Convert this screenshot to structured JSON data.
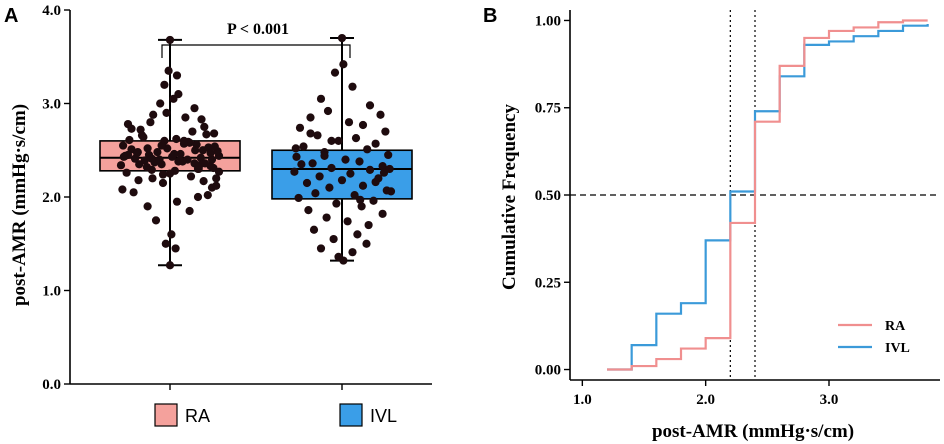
{
  "colors": {
    "ra_fill": "#f4a19c",
    "ivl_fill": "#3a9ee8",
    "ra_line": "#f08f8f",
    "ivl_line": "#3b9ad9",
    "dot": "#1e0b0e",
    "axis": "#000000"
  },
  "panels": {
    "a_label": "A",
    "b_label": "B"
  },
  "chart_data": [
    {
      "type": "box",
      "panel": "A",
      "title": "",
      "ylabel": "post-AMR (mmHg·s/cm)",
      "xlabel": "",
      "ylim": [
        0.0,
        4.0
      ],
      "yticks": [
        "0.0",
        "1.0",
        "2.0",
        "3.0",
        "4.0"
      ],
      "annotation": "P < 0.001",
      "legend": [
        {
          "name": "RA",
          "color": "#f4a19c"
        },
        {
          "name": "IVL",
          "color": "#3a9ee8"
        }
      ],
      "series": [
        {
          "name": "RA",
          "min": 1.27,
          "q1": 2.28,
          "median": 2.42,
          "q3": 2.6,
          "max": 3.68,
          "points": [
            2.45,
            2.38,
            2.51,
            2.3,
            2.6,
            2.2,
            2.72,
            2.4,
            2.33,
            2.55,
            2.48,
            2.36,
            2.29,
            2.62,
            2.44,
            2.41,
            2.5,
            2.35,
            2.57,
            2.26,
            2.67,
            2.43,
            2.39,
            2.52,
            2.31,
            2.47,
            2.58,
            2.34,
            2.46,
            2.42,
            2.37,
            2.53,
            2.28,
            2.61,
            2.4,
            2.49,
            2.32,
            2.56,
            2.44,
            2.38,
            2.22,
            2.66,
            2.15,
            2.75,
            2.1,
            2.8,
            2.05,
            2.85,
            2.0,
            2.9,
            1.95,
            2.95,
            1.9,
            3.0,
            1.85,
            3.05,
            1.75,
            3.1,
            1.6,
            3.2,
            1.5,
            3.3,
            1.45,
            3.35,
            2.18,
            2.68,
            2.12,
            2.78,
            2.08,
            2.83,
            2.02,
            2.88,
            2.25,
            2.64,
            2.2,
            2.7,
            2.17,
            2.73,
            2.45,
            2.4,
            2.35,
            2.5,
            2.3,
            2.55,
            2.27,
            2.59,
            2.43,
            2.47,
            2.36,
            2.52,
            3.68,
            1.27,
            2.6,
            2.24,
            2.39,
            2.48,
            2.34,
            2.54,
            2.41,
            2.46
          ],
          "jitter": [
            -0.3,
            0.12,
            -0.55,
            0.41,
            -0.08,
            0.66,
            -0.42,
            0.25,
            0.58,
            -0.67,
            -0.18,
            0.35,
            -0.26,
            0.09,
            0.7,
            -0.5,
            0.47,
            -0.12,
            0.2,
            -0.62,
            0.52,
            0.03,
            -0.36,
            -0.04,
            0.62,
            -0.47,
            0.28,
            -0.7,
            0.15,
            0.44,
            -0.22,
            0.55,
            0.07,
            -0.58,
            -0.15,
            0.68,
            -0.33,
            0.38,
            -0.64,
            0.18,
            0.3,
            -0.4,
            -0.1,
            0.49,
            0.6,
            -0.28,
            -0.52,
            0.22,
            0.4,
            -0.05,
            0.1,
            0.35,
            -0.32,
            -0.14,
            0.28,
            0.05,
            -0.2,
            0.12,
            0.02,
            -0.08,
            -0.06,
            0.1,
            0.08,
            -0.02,
            -0.45,
            0.63,
            0.66,
            -0.6,
            -0.68,
            0.45,
            0.54,
            -0.24,
            0.0,
            -0.38,
            -0.25,
            0.32,
            0.48,
            -0.55,
            -0.6,
            0.6,
            -0.44,
            0.36,
            0.4,
            -0.12,
            0.7,
            0.26,
            -0.66,
            0.58,
            0.5,
            -0.32,
            0.0,
            0.0,
            0.2,
            -0.1,
            0.14,
            -0.46,
            0.42,
            0.64,
            -0.26,
            0.06
          ]
        },
        {
          "name": "IVL",
          "min": 1.32,
          "q1": 1.98,
          "median": 2.3,
          "q3": 2.5,
          "max": 3.7,
          "points": [
            3.7,
            3.42,
            3.33,
            3.18,
            3.05,
            2.98,
            2.92,
            2.88,
            2.85,
            2.8,
            2.77,
            2.74,
            2.7,
            2.66,
            2.63,
            2.6,
            2.57,
            2.54,
            2.51,
            2.48,
            2.45,
            2.43,
            2.4,
            2.38,
            2.36,
            2.33,
            2.31,
            2.29,
            2.27,
            2.25,
            2.22,
            2.2,
            2.18,
            2.15,
            2.12,
            2.1,
            2.07,
            2.04,
            2.02,
            1.99,
            1.96,
            1.93,
            1.9,
            1.86,
            1.82,
            1.78,
            1.74,
            1.7,
            1.65,
            1.6,
            1.55,
            1.5,
            1.45,
            1.41,
            1.36,
            1.32,
            2.35,
            2.26,
            2.44,
            2.16,
            2.52,
            2.06,
            2.6,
            1.97,
            2.68,
            2.3
          ],
          "jitter": [
            0.0,
            0.02,
            -0.1,
            0.15,
            -0.3,
            0.4,
            -0.2,
            0.55,
            -0.45,
            0.1,
            0.3,
            -0.6,
            0.62,
            -0.35,
            0.2,
            -0.05,
            0.48,
            -0.55,
            0.36,
            -0.25,
            0.66,
            -0.65,
            0.05,
            0.25,
            -0.42,
            0.58,
            -0.15,
            0.4,
            -0.68,
            0.12,
            -0.32,
            0.52,
            0.0,
            -0.5,
            0.3,
            -0.18,
            0.64,
            -0.38,
            0.18,
            -0.62,
            0.45,
            -0.08,
            0.28,
            -0.48,
            0.58,
            -0.22,
            0.08,
            0.38,
            -0.4,
            0.22,
            -0.12,
            0.35,
            -0.3,
            0.15,
            -0.05,
            0.02,
            -0.58,
            0.6,
            -0.25,
            0.48,
            -0.66,
            0.7,
            -0.15,
            0.26,
            -0.45,
            0.68
          ]
        }
      ]
    },
    {
      "type": "line",
      "panel": "B",
      "title": "",
      "xlabel": "post-AMR (mmHg·s/cm)",
      "ylabel": "Cumulative Frequency",
      "xlim": [
        0.9,
        3.9
      ],
      "ylim": [
        -0.03,
        1.03
      ],
      "xticks": [
        "1.0",
        "2.0",
        "3.0"
      ],
      "xtick_values": [
        1.0,
        2.0,
        3.0
      ],
      "yticks": [
        "0.00",
        "0.25",
        "0.50",
        "0.75",
        "1.00"
      ],
      "ytick_values": [
        0.0,
        0.25,
        0.5,
        0.75,
        1.0
      ],
      "reference_lines": {
        "horizontal": [
          0.5
        ],
        "vertical": [
          2.2,
          2.4
        ]
      },
      "legend_position": "bottom-right",
      "series": [
        {
          "name": "RA",
          "color": "#f08f8f",
          "x": [
            1.2,
            1.4,
            1.6,
            1.8,
            2.0,
            2.2,
            2.4,
            2.6,
            2.8,
            3.0,
            3.2,
            3.4,
            3.6,
            3.8
          ],
          "y": [
            0.0,
            0.01,
            0.03,
            0.06,
            0.09,
            0.42,
            0.71,
            0.87,
            0.95,
            0.97,
            0.98,
            0.995,
            1.0,
            1.0
          ]
        },
        {
          "name": "IVL",
          "color": "#3b9ad9",
          "x": [
            1.2,
            1.4,
            1.6,
            1.8,
            2.0,
            2.2,
            2.4,
            2.6,
            2.8,
            3.0,
            3.2,
            3.4,
            3.6,
            3.8
          ],
          "y": [
            0.0,
            0.07,
            0.16,
            0.19,
            0.37,
            0.51,
            0.74,
            0.84,
            0.93,
            0.94,
            0.955,
            0.97,
            0.985,
            0.99
          ]
        }
      ]
    }
  ]
}
